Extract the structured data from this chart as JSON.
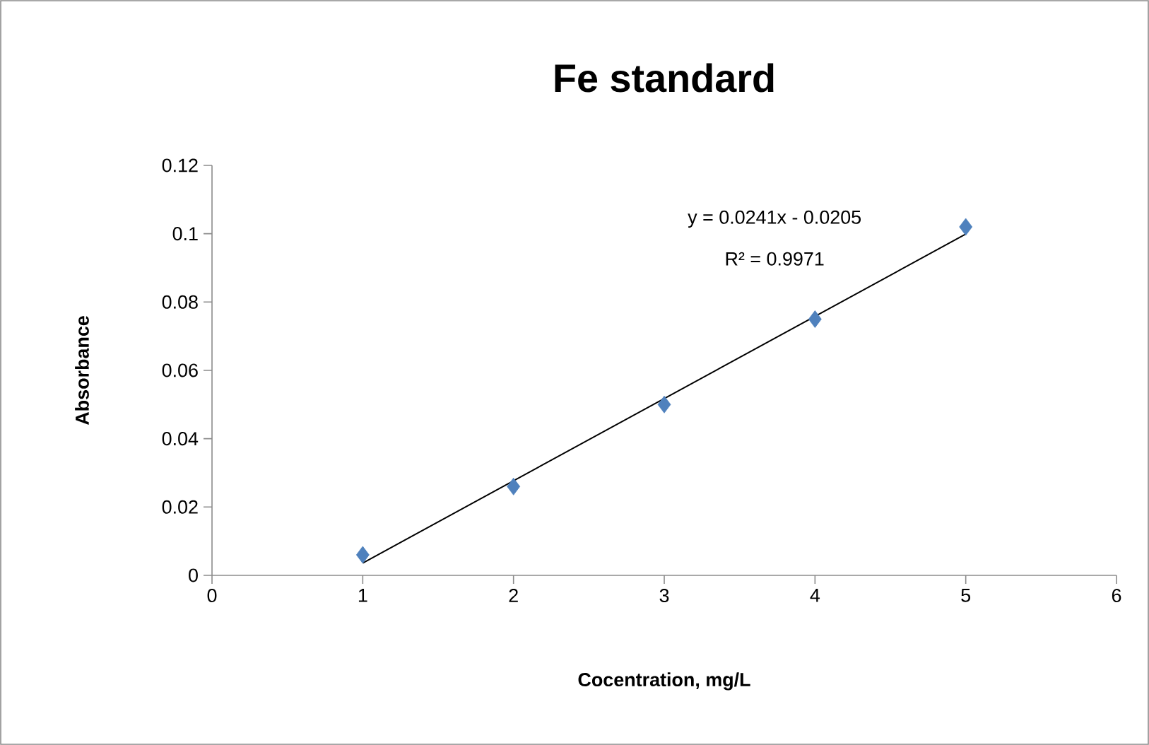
{
  "chart_data": {
    "type": "scatter",
    "title": "Fe standard",
    "xlabel": "Cocentration, mg/L",
    "ylabel": "Absorbance",
    "x": [
      1,
      2,
      3,
      4,
      5
    ],
    "series": [
      {
        "color": "#4f81bd",
        "marker": "diamond",
        "values": [
          0.006,
          0.026,
          0.05,
          0.075,
          0.102
        ]
      },
      {
        "type": "line",
        "color": "#000000",
        "marker": "none",
        "line_style": "solid",
        "x": [
          1,
          5
        ],
        "values": [
          0.0036,
          0.0999
        ]
      }
    ],
    "annotations": [
      "y = 0.0241x - 0.0205",
      "R² = 0.9971"
    ],
    "xlim": [
      0,
      6
    ],
    "xticks": [
      0,
      1,
      2,
      3,
      4,
      5,
      6
    ],
    "ylim": [
      0,
      0.12
    ],
    "yticks": [
      0,
      0.02,
      0.04,
      0.06,
      0.08,
      0.1,
      0.12
    ],
    "grid": false
  }
}
